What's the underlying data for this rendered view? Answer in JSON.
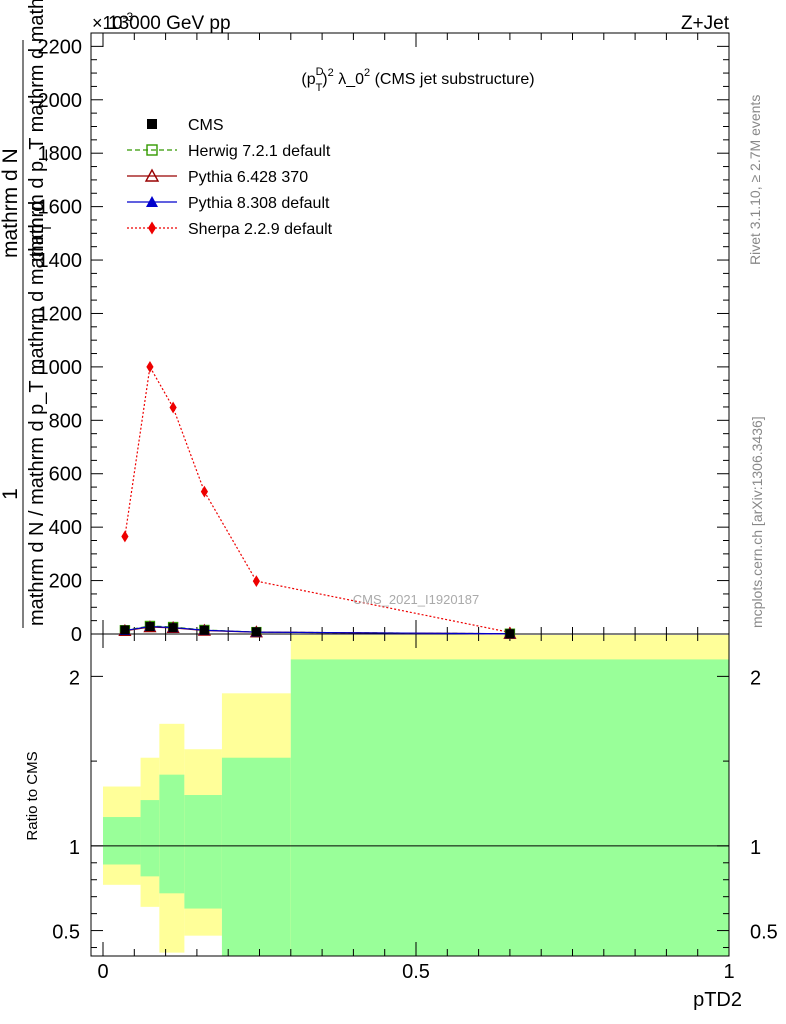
{
  "header": {
    "energy_label": "13000 GeV pp",
    "process_label": "Z+Jet",
    "exponent_label": "×10",
    "exponent_power": "-3",
    "side_label_top": "Rivet 3.1.10, ≥ 2.7M events",
    "side_label_bottom": "mcplots.cern.ch [arXiv:1306.3436]",
    "watermark": "CMS_2021_I1920187"
  },
  "colors": {
    "cms": "#000000",
    "herwig": "#339900",
    "pythia6": "#990000",
    "pythia8": "#0000cc",
    "sherpa": "#ee0000",
    "band_inner": "#99ff99",
    "band_outer": "#ffff99"
  },
  "chart_data": [
    {
      "type": "line",
      "title": "(p_T^D)^2 λ_0^2 (CMS jet substructure)",
      "title_parts": {
        "open": "(p",
        "sup1": "D",
        "sub1": "T",
        "mid": ")",
        "sup2": "2",
        "lambda": " λ_0",
        "sup3": "2",
        "rest": " (CMS jet substructure)"
      },
      "xlabel": "pTD2",
      "ylabel_parts": {
        "numerator": "1",
        "denominator": "mathrm d N / mathrm d p_T mathrm d mathrm d",
        "right_num": "mathrm d N",
        "right_den": "mathrm d p_T mathrm d mathrm d lambda",
        "t_sub": "T"
      },
      "xlim": [
        0,
        1
      ],
      "ylim": [
        0,
        2250
      ],
      "y_scale_note": "×10^-3",
      "x_ticks": [
        0,
        0.5,
        1
      ],
      "x_tick_labels": [
        "0",
        "0.5",
        "1"
      ],
      "y_ticks": [
        0,
        200,
        400,
        600,
        800,
        1000,
        1200,
        1400,
        1600,
        1800,
        2000,
        2200
      ],
      "y_tick_labels": [
        "0",
        "200",
        "400",
        "600",
        "800",
        "1000",
        "1200",
        "1400",
        "1600",
        "1800",
        "2000",
        "2200"
      ],
      "legend_position": "top-left",
      "series": [
        {
          "name": "CMS",
          "marker": "square-filled",
          "color": "#000000",
          "line": "none",
          "x": [
            0.035,
            0.075,
            0.112,
            0.162,
            0.245,
            0.65
          ],
          "y": [
            15,
            28,
            24,
            14,
            8,
            1
          ]
        },
        {
          "name": "Herwig 7.2.1 default",
          "marker": "square-open",
          "color": "#339900",
          "line": "dashed",
          "x": [
            0.035,
            0.075,
            0.112,
            0.162,
            0.245,
            0.65
          ],
          "y": [
            14,
            30,
            26,
            15,
            7,
            1
          ]
        },
        {
          "name": "Pythia 6.428 370",
          "marker": "triangle-open",
          "color": "#990000",
          "line": "solid",
          "x": [
            0.035,
            0.075,
            0.112,
            0.162,
            0.245,
            0.65
          ],
          "y": [
            12,
            26,
            23,
            13,
            7,
            1
          ]
        },
        {
          "name": "Pythia 8.308 default",
          "marker": "triangle-filled",
          "color": "#0000cc",
          "line": "solid",
          "x": [
            0.035,
            0.075,
            0.112,
            0.162,
            0.245,
            0.65
          ],
          "y": [
            13,
            28,
            24,
            14,
            7,
            1
          ]
        },
        {
          "name": "Sherpa 2.2.9 default",
          "marker": "diamond",
          "color": "#ee0000",
          "line": "dotted",
          "x": [
            0.035,
            0.075,
            0.112,
            0.162,
            0.245,
            0.65
          ],
          "y": [
            365,
            1000,
            848,
            533,
            198,
            6
          ]
        }
      ]
    },
    {
      "type": "area",
      "title": "Ratio to CMS",
      "xlabel": "pTD2",
      "ylabel": "Ratio to CMS",
      "xlim": [
        0,
        1
      ],
      "ylim": [
        0.35,
        2.25
      ],
      "y_ticks": [
        0.5,
        1,
        2
      ],
      "y_tick_labels": [
        "0.5",
        "1",
        "2"
      ],
      "reference_line": 1,
      "bins": [
        {
          "x0": 0.0,
          "x1": 0.06,
          "inner": [
            0.89,
            1.17
          ],
          "outer": [
            0.77,
            1.35
          ]
        },
        {
          "x0": 0.06,
          "x1": 0.09,
          "inner": [
            0.82,
            1.27
          ],
          "outer": [
            0.64,
            1.52
          ]
        },
        {
          "x0": 0.09,
          "x1": 0.13,
          "inner": [
            0.72,
            1.42
          ],
          "outer": [
            0.37,
            1.72
          ]
        },
        {
          "x0": 0.13,
          "x1": 0.19,
          "inner": [
            0.63,
            1.3
          ],
          "outer": [
            0.47,
            1.57
          ]
        },
        {
          "x0": 0.19,
          "x1": 0.3,
          "inner": [
            0.35,
            1.52
          ],
          "outer": [
            0.35,
            1.9
          ]
        },
        {
          "x0": 0.3,
          "x1": 1.0,
          "inner": [
            0.35,
            2.1
          ],
          "outer": [
            0.35,
            2.4
          ]
        }
      ]
    }
  ]
}
